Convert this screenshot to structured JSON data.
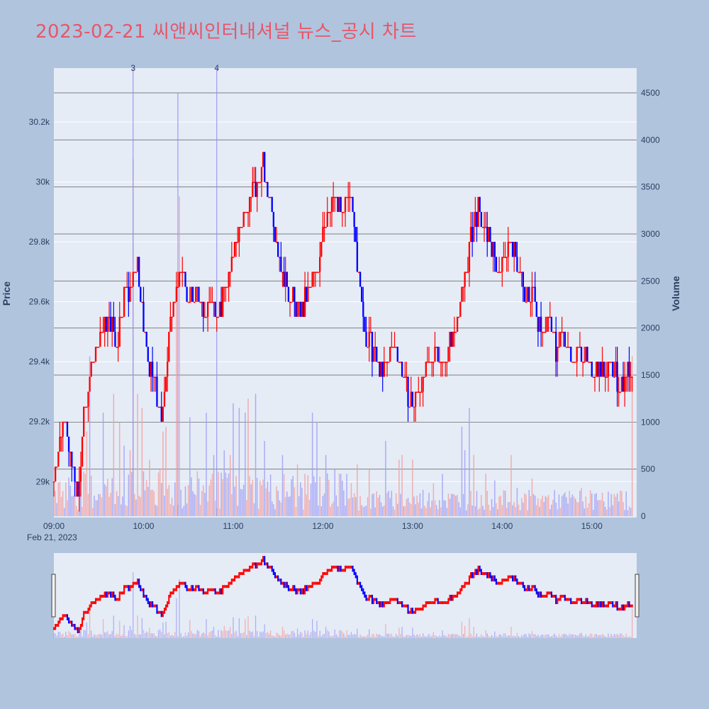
{
  "title": "2023-02-21 씨앤씨인터내셔널 뉴스_공시 차트",
  "colors": {
    "background": "#b0c4de",
    "plot_bg": "#e5ecf6",
    "title": "#e8566a",
    "up": "#ff0000",
    "down": "#0000ff",
    "volume_up": "#f4a0a0",
    "volume_down": "#a0a0f4",
    "news_line": "#8c8cf0",
    "volume_grid": "#808080"
  },
  "chart_data": {
    "type": "candlestick",
    "date_label": "Feb 21, 2023",
    "x_ticks": [
      "09:00",
      "10:00",
      "11:00",
      "12:00",
      "13:00",
      "14:00",
      "15:00"
    ],
    "x_range": [
      "09:00",
      "15:30"
    ],
    "y_axis": {
      "title": "Price",
      "ticks": [
        "29k",
        "29.2k",
        "29.4k",
        "29.6k",
        "29.8k",
        "30k",
        "30.2k"
      ],
      "range": [
        28880,
        30380
      ]
    },
    "y2_axis": {
      "title": "Volume",
      "ticks": [
        "0",
        "500",
        "1000",
        "1500",
        "2000",
        "2500",
        "3000",
        "3500",
        "4000",
        "4500"
      ],
      "range": [
        0,
        4500
      ]
    },
    "price_path": [
      [
        "09:00",
        29000
      ],
      [
        "09:02",
        29100
      ],
      [
        "09:05",
        29150
      ],
      [
        "09:07",
        29250
      ],
      [
        "09:10",
        29100
      ],
      [
        "09:13",
        29050
      ],
      [
        "09:16",
        28950
      ],
      [
        "09:20",
        29200
      ],
      [
        "09:24",
        29350
      ],
      [
        "09:28",
        29450
      ],
      [
        "09:33",
        29500
      ],
      [
        "09:38",
        29550
      ],
      [
        "09:42",
        29450
      ],
      [
        "09:46",
        29600
      ],
      [
        "09:50",
        29650
      ],
      [
        "09:54",
        29700
      ],
      [
        "09:56",
        29750
      ],
      [
        "09:58",
        29600
      ],
      [
        "10:00",
        29500
      ],
      [
        "10:04",
        29400
      ],
      [
        "10:08",
        29300
      ],
      [
        "10:12",
        29200
      ],
      [
        "10:15",
        29350
      ],
      [
        "10:18",
        29550
      ],
      [
        "10:22",
        29650
      ],
      [
        "10:26",
        29700
      ],
      [
        "10:30",
        29600
      ],
      [
        "10:35",
        29650
      ],
      [
        "10:40",
        29550
      ],
      [
        "10:45",
        29600
      ],
      [
        "10:50",
        29550
      ],
      [
        "10:55",
        29650
      ],
      [
        "10:58",
        29700
      ],
      [
        "11:00",
        29800
      ],
      [
        "11:04",
        29850
      ],
      [
        "11:08",
        29900
      ],
      [
        "11:12",
        29950
      ],
      [
        "11:16",
        30000
      ],
      [
        "11:20",
        30050
      ],
      [
        "11:24",
        29950
      ],
      [
        "11:28",
        29850
      ],
      [
        "11:32",
        29700
      ],
      [
        "11:36",
        29650
      ],
      [
        "11:40",
        29600
      ],
      [
        "11:44",
        29550
      ],
      [
        "11:48",
        29600
      ],
      [
        "11:52",
        29650
      ],
      [
        "11:56",
        29700
      ],
      [
        "12:00",
        29850
      ],
      [
        "12:04",
        29900
      ],
      [
        "12:08",
        29950
      ],
      [
        "12:12",
        29900
      ],
      [
        "12:16",
        29950
      ],
      [
        "12:20",
        29900
      ],
      [
        "12:24",
        29700
      ],
      [
        "12:28",
        29500
      ],
      [
        "12:32",
        29450
      ],
      [
        "12:36",
        29400
      ],
      [
        "12:40",
        29350
      ],
      [
        "12:44",
        29400
      ],
      [
        "12:48",
        29450
      ],
      [
        "12:52",
        29400
      ],
      [
        "12:56",
        29300
      ],
      [
        "13:00",
        29250
      ],
      [
        "13:04",
        29300
      ],
      [
        "13:08",
        29350
      ],
      [
        "13:12",
        29400
      ],
      [
        "13:16",
        29450
      ],
      [
        "13:20",
        29400
      ],
      [
        "13:24",
        29450
      ],
      [
        "13:28",
        29500
      ],
      [
        "13:32",
        29600
      ],
      [
        "13:36",
        29700
      ],
      [
        "13:40",
        29850
      ],
      [
        "13:44",
        29900
      ],
      [
        "13:48",
        29850
      ],
      [
        "13:52",
        29800
      ],
      [
        "13:56",
        29700
      ],
      [
        "14:00",
        29750
      ],
      [
        "14:04",
        29800
      ],
      [
        "14:08",
        29750
      ],
      [
        "14:12",
        29700
      ],
      [
        "14:16",
        29600
      ],
      [
        "14:20",
        29650
      ],
      [
        "14:24",
        29550
      ],
      [
        "14:28",
        29500
      ],
      [
        "14:32",
        29550
      ],
      [
        "14:36",
        29450
      ],
      [
        "14:40",
        29500
      ],
      [
        "14:44",
        29450
      ],
      [
        "14:48",
        29400
      ],
      [
        "14:52",
        29450
      ],
      [
        "14:56",
        29400
      ],
      [
        "15:00",
        29350
      ],
      [
        "15:04",
        29400
      ],
      [
        "15:08",
        29350
      ],
      [
        "15:12",
        29400
      ],
      [
        "15:16",
        29350
      ],
      [
        "15:20",
        29300
      ],
      [
        "15:24",
        29350
      ],
      [
        "15:27",
        29350
      ],
      [
        "15:30",
        29300
      ]
    ],
    "volume_peaks": [
      [
        "09:22",
        900
      ],
      [
        "09:24",
        1700
      ],
      [
        "09:33",
        1100
      ],
      [
        "09:40",
        1300
      ],
      [
        "09:44",
        1000
      ],
      [
        "09:47",
        750
      ],
      [
        "09:51",
        700
      ],
      [
        "09:53",
        3800
      ],
      [
        "09:56",
        1300
      ],
      [
        "09:59",
        1150
      ],
      [
        "10:04",
        600
      ],
      [
        "10:11",
        500
      ],
      [
        "10:13",
        900
      ],
      [
        "10:15",
        950
      ],
      [
        "10:22",
        2300
      ],
      [
        "10:24",
        3400
      ],
      [
        "10:31",
        1050
      ],
      [
        "10:42",
        1100
      ],
      [
        "10:47",
        650
      ],
      [
        "10:54",
        700
      ],
      [
        "10:58",
        650
      ],
      [
        "11:00",
        1200
      ],
      [
        "11:04",
        1150
      ],
      [
        "11:08",
        1100
      ],
      [
        "11:10",
        1250
      ],
      [
        "11:15",
        1300
      ],
      [
        "11:21",
        800
      ],
      [
        "11:33",
        650
      ],
      [
        "11:43",
        550
      ],
      [
        "11:48",
        450
      ],
      [
        "11:53",
        1100
      ],
      [
        "11:56",
        1000
      ],
      [
        "12:02",
        650
      ],
      [
        "12:08",
        500
      ],
      [
        "12:16",
        450
      ],
      [
        "12:23",
        550
      ],
      [
        "12:31",
        500
      ],
      [
        "12:42",
        800
      ],
      [
        "12:51",
        600
      ],
      [
        "12:53",
        650
      ],
      [
        "13:00",
        600
      ],
      [
        "13:07",
        280
      ],
      [
        "13:14",
        350
      ],
      [
        "13:20",
        450
      ],
      [
        "13:33",
        950
      ],
      [
        "13:35",
        700
      ],
      [
        "13:38",
        1150
      ],
      [
        "13:41",
        650
      ],
      [
        "13:49",
        450
      ],
      [
        "13:55",
        380
      ],
      [
        "14:06",
        650
      ],
      [
        "14:10",
        300
      ],
      [
        "14:20",
        400
      ],
      [
        "14:30",
        200
      ],
      [
        "14:43",
        200
      ],
      [
        "14:53",
        300
      ],
      [
        "15:07",
        250
      ],
      [
        "15:21",
        150
      ],
      [
        "15:27",
        1700
      ]
    ],
    "news_markers": [
      {
        "label": "3",
        "time": "09:53"
      },
      {
        "label": "4",
        "time": "10:49"
      }
    ],
    "extra_news_line": {
      "time": "10:23",
      "volume": 4500
    }
  }
}
